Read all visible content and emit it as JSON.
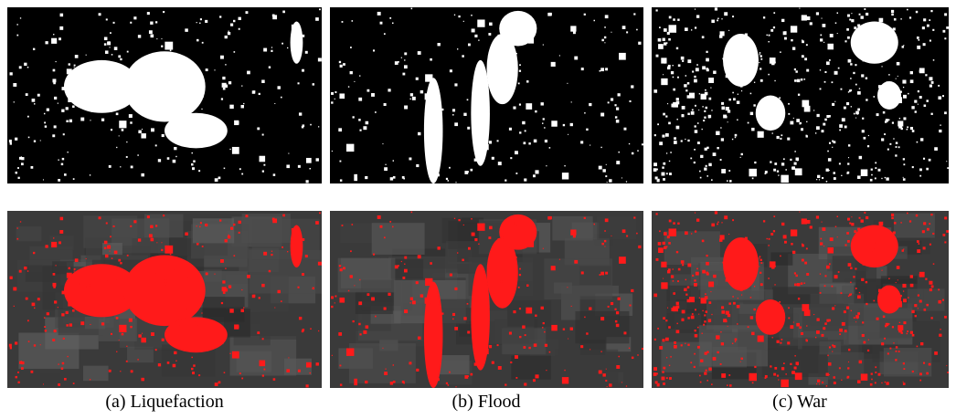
{
  "figure": {
    "panels": [
      {
        "caption": "(a) Liquefaction"
      },
      {
        "caption": "(b) Flood"
      },
      {
        "caption": "(c) War"
      }
    ]
  }
}
